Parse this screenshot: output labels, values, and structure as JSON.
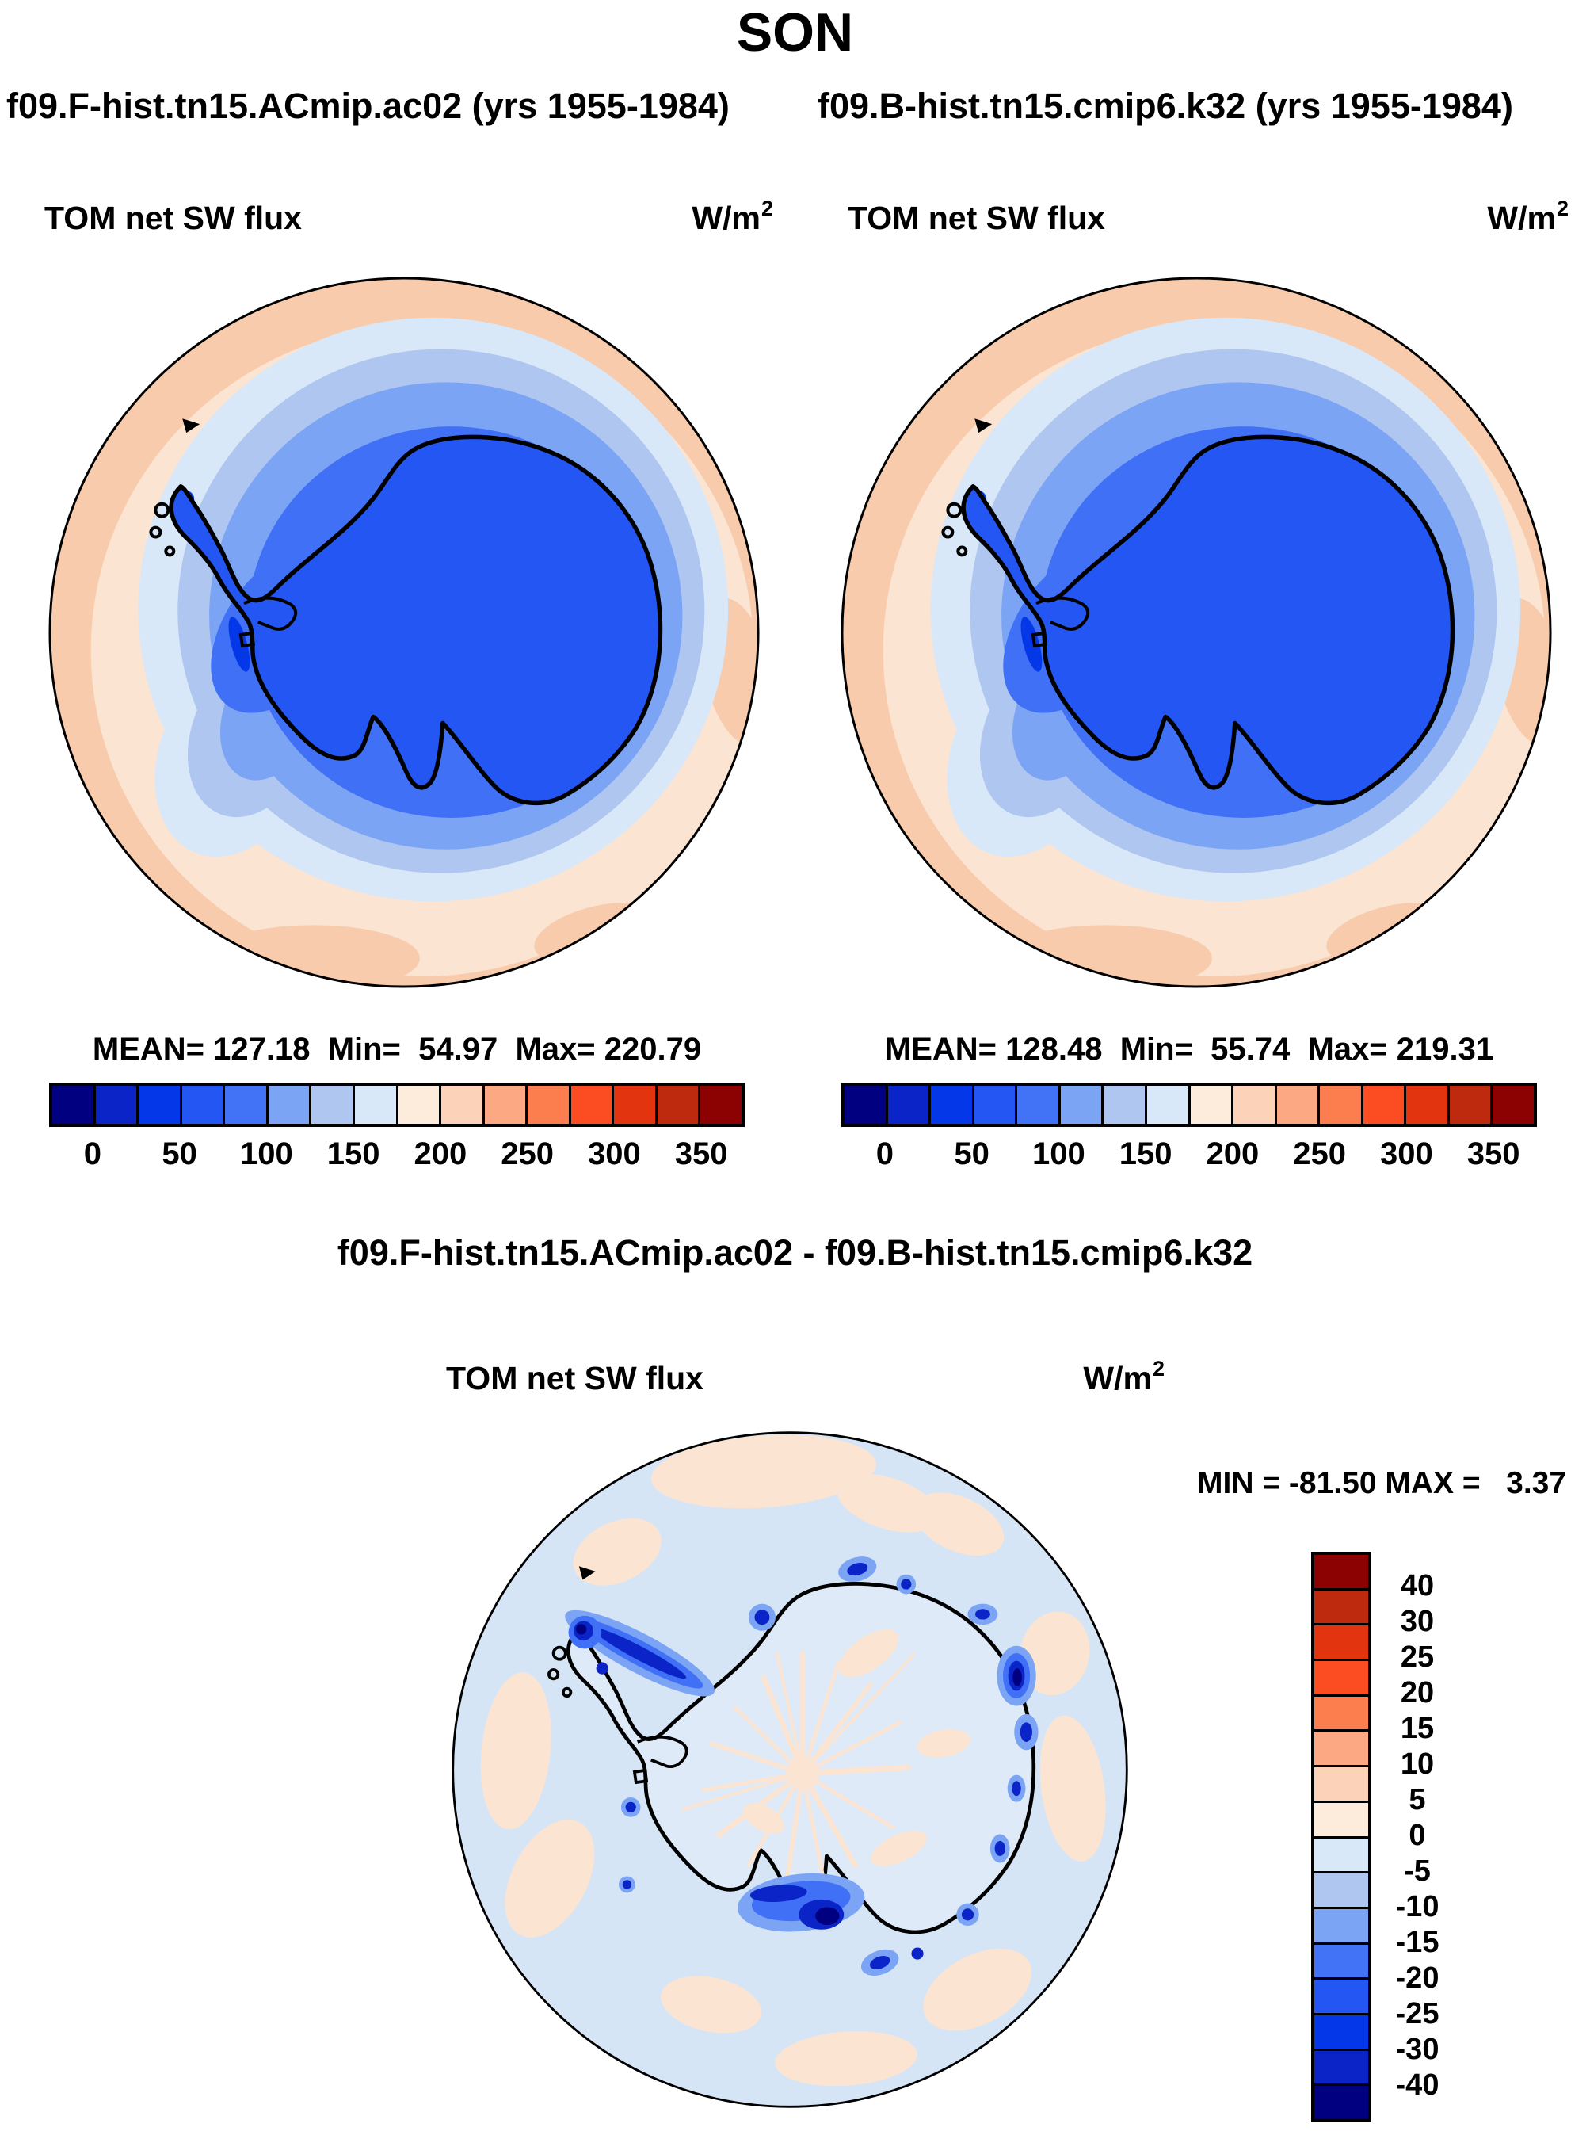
{
  "header": {
    "title": "SON"
  },
  "panels": [
    {
      "subtitle": "f09.F-hist.tn15.ACmip.ac02 (yrs 1955-1984)",
      "field_label": "TOM net SW flux",
      "units_base": "W/m",
      "units_exp": "2",
      "stats_line": "MEAN= 127.18  Min=  54.97  Max= 220.79"
    },
    {
      "subtitle": "f09.B-hist.tn15.cmip6.k32 (yrs 1955-1984)",
      "field_label": "TOM net SW flux",
      "units_base": "W/m",
      "units_exp": "2",
      "stats_line": "MEAN= 128.48  Min=  55.74  Max= 219.31"
    }
  ],
  "colorbar_h": {
    "colors": [
      "#010080",
      "#0B24C8",
      "#0437E8",
      "#2456F3",
      "#4272F5",
      "#7CA4F5",
      "#AEC6F0",
      "#D8E8F8",
      "#FDEBDC",
      "#FCD2B8",
      "#FCA983",
      "#FC7E4F",
      "#FB4D21",
      "#E33410",
      "#BE2A0D",
      "#8C0101"
    ],
    "labels": [
      "0",
      "50",
      "100",
      "150",
      "200",
      "250",
      "300",
      "350"
    ],
    "label_boundaries": [
      1,
      3,
      5,
      7,
      9,
      11,
      13,
      15
    ]
  },
  "diff": {
    "title": "f09.F-hist.tn15.ACmip.ac02 - f09.B-hist.tn15.cmip6.k32",
    "field_label": "TOM net SW flux",
    "units_base": "W/m",
    "units_exp": "2",
    "minmax_line": "MIN = -81.50 MAX =   3.37",
    "colorbar_v": {
      "colors": [
        "#8C0101",
        "#BE2A0D",
        "#E33410",
        "#FB4D21",
        "#FC7E4F",
        "#FCA983",
        "#FCD2B8",
        "#FDEBDC",
        "#D8E8F8",
        "#AEC6F0",
        "#7CA4F5",
        "#4272F5",
        "#2456F3",
        "#0437E8",
        "#0B24C8",
        "#010080"
      ],
      "labels": [
        "40",
        "30",
        "25",
        "20",
        "15",
        "10",
        "5",
        "0",
        "-5",
        "-10",
        "-15",
        "-20",
        "-25",
        "-30",
        "-40"
      ],
      "label_boundaries": [
        1,
        2,
        3,
        4,
        5,
        6,
        7,
        8,
        9,
        10,
        11,
        12,
        13,
        14,
        15
      ]
    }
  },
  "colors": {
    "outline": "#000000",
    "map": {
      "rim_peach": "#F7CBAB",
      "light_peach": "#FBE5D2",
      "pale_blue": "#D8E8F8",
      "light_blue": "#AEC6F0",
      "mid_blue": "#7CA4F5",
      "royal_blue": "#4070F5",
      "continent_blue": "#2456F3",
      "dark_spot": "#0437E8",
      "diff_ocean": "#D5E5F6",
      "diff_patch": "#FBE5D2",
      "diff_continent": "#DEEAF8",
      "diff_halo": "#7CA4F5",
      "diff_mid": "#4070F5",
      "diff_deep": "#2456F3",
      "diff_core": "#0B24C8",
      "diff_navy": "#010080"
    }
  },
  "chart_data": [
    {
      "type": "heatmap",
      "subtype": "filled-contour-map",
      "map_projection": "south-polar-stereographic",
      "panel": "top-left",
      "season": "SON",
      "run": "f09.F-hist.tn15.ACmip.ac02",
      "years": "1955-1984",
      "variable": "TOM net SW flux",
      "units": "W/m2",
      "mean": 127.18,
      "min": 54.97,
      "max": 220.79,
      "contour_interval": 25,
      "colorbar_tick_values": [
        0,
        50,
        100,
        150,
        200,
        250,
        300,
        350
      ],
      "palette": [
        "#010080",
        "#0B24C8",
        "#0437E8",
        "#2456F3",
        "#4272F5",
        "#7CA4F5",
        "#AEC6F0",
        "#D8E8F8",
        "#FDEBDC",
        "#FCD2B8",
        "#FCA983",
        "#FC7E4F",
        "#FB4D21",
        "#E33410",
        "#BE2A0D",
        "#8C0101"
      ],
      "legend_position": "below",
      "grid": false,
      "description": "Antarctic continent interior ~75-125 W/m2 (royal blue), values increase outward through blue bands to ~175-250 W/m2 (peach) at the map rim; black coastline overlay."
    },
    {
      "type": "heatmap",
      "subtype": "filled-contour-map",
      "map_projection": "south-polar-stereographic",
      "panel": "top-right",
      "season": "SON",
      "run": "f09.B-hist.tn15.cmip6.k32",
      "years": "1955-1984",
      "variable": "TOM net SW flux",
      "units": "W/m2",
      "mean": 128.48,
      "min": 55.74,
      "max": 219.31,
      "contour_interval": 25,
      "colorbar_tick_values": [
        0,
        50,
        100,
        150,
        200,
        250,
        300,
        350
      ],
      "palette": [
        "#010080",
        "#0B24C8",
        "#0437E8",
        "#2456F3",
        "#4272F5",
        "#7CA4F5",
        "#AEC6F0",
        "#D8E8F8",
        "#FDEBDC",
        "#FCD2B8",
        "#FCA983",
        "#FC7E4F",
        "#FB4D21",
        "#E33410",
        "#BE2A0D",
        "#8C0101"
      ],
      "legend_position": "below",
      "grid": false,
      "description": "Nearly identical spatial pattern to top-left panel."
    },
    {
      "type": "heatmap",
      "subtype": "difference-map",
      "map_projection": "south-polar-stereographic",
      "panel": "bottom",
      "season": "SON",
      "run": "f09.F-hist.tn15.ACmip.ac02 - f09.B-hist.tn15.cmip6.k32",
      "variable": "TOM net SW flux",
      "units": "W/m2",
      "min": -81.5,
      "max": 3.37,
      "contour_levels": [
        -40,
        -30,
        -25,
        -20,
        -15,
        -10,
        -5,
        0,
        5,
        10,
        15,
        20,
        25,
        30,
        40
      ],
      "palette_top_to_bottom": [
        "#8C0101",
        "#BE2A0D",
        "#E33410",
        "#FB4D21",
        "#FC7E4F",
        "#FCA983",
        "#FCD2B8",
        "#FDEBDC",
        "#D8E8F8",
        "#AEC6F0",
        "#7CA4F5",
        "#4272F5",
        "#2456F3",
        "#0437E8",
        "#0B24C8",
        "#010080"
      ],
      "legend_position": "right",
      "grid": false,
      "description": "Differences mostly between -5 and +5 W/m2 (pale blue ocean with scattered pale peach patches); strong negative anomalies (dark blue, below -20) hug the Antarctic coast, largest near the Ross Sea and Antarctic Peninsula; pale peach starburst streaks over the continental interior."
    }
  ]
}
